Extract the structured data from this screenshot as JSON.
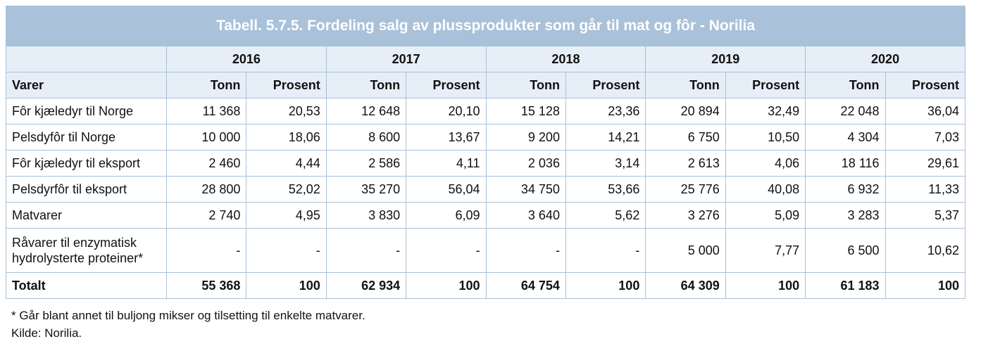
{
  "table": {
    "title": "Tabell. 5.7.5. Fordeling salg av plussprodukter som går til mat og fôr - Norilia",
    "years": [
      "2016",
      "2017",
      "2018",
      "2019",
      "2020"
    ],
    "header": [
      "Varer",
      "Tonn",
      "Prosent",
      "Tonn",
      "Prosent",
      "Tonn",
      "Prosent",
      "Tonn",
      "Prosent",
      "Tonn",
      "Prosent"
    ],
    "rows": [
      [
        "Fôr kjæledyr til Norge",
        "11 368",
        "20,53",
        "12 648",
        "20,10",
        "15 128",
        "23,36",
        "20 894",
        "32,49",
        "22 048",
        "36,04"
      ],
      [
        "Pelsdyfôr til Norge",
        "10 000",
        "18,06",
        "8 600",
        "13,67",
        "9 200",
        "14,21",
        "6 750",
        "10,50",
        "4 304",
        "7,03"
      ],
      [
        "Fôr kjæledyr til eksport",
        "2 460",
        "4,44",
        "2 586",
        "4,11",
        "2 036",
        "3,14",
        "2 613",
        "4,06",
        "18 116",
        "29,61"
      ],
      [
        "Pelsdyrfôr til eksport",
        "28 800",
        "52,02",
        "35 270",
        "56,04",
        "34 750",
        "53,66",
        "25 776",
        "40,08",
        "6 932",
        "11,33"
      ],
      [
        "Matvarer",
        "2 740",
        "4,95",
        "3 830",
        "6,09",
        "3 640",
        "5,62",
        "3 276",
        "5,09",
        "3 283",
        "5,37"
      ],
      [
        "Råvarer til enzymatisk hydrolysterte proteiner*",
        "-",
        "-",
        "-",
        "-",
        "-",
        "-",
        "5 000",
        "7,77",
        "6 500",
        "10,62"
      ]
    ],
    "total": [
      "Totalt",
      "55 368",
      "100",
      "62 934",
      "100",
      "64 754",
      "100",
      "64 309",
      "100",
      "61 183",
      "100"
    ]
  },
  "footnotes": [
    "* Går blant annet til buljong mikser og tilsetting til enkelte matvarer.",
    "Kilde: Norilia."
  ]
}
